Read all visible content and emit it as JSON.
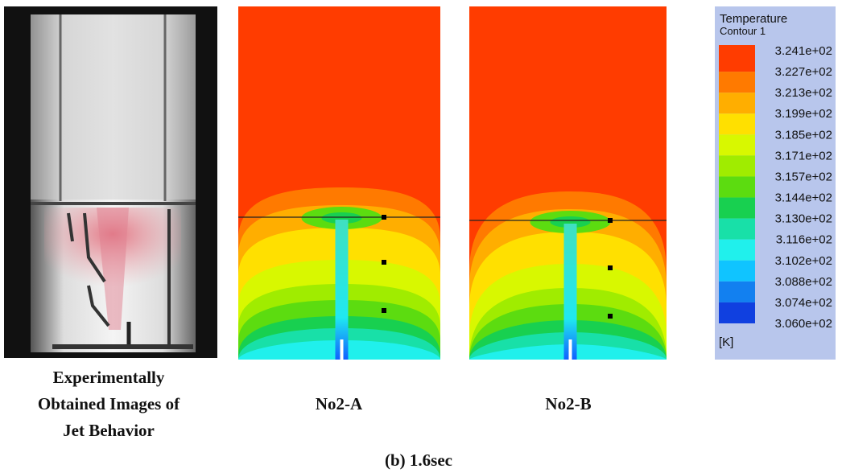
{
  "figure": {
    "panels": [
      {
        "caption_lines": [
          "Experimentally",
          "Obtained Images of",
          "Jet Behavior"
        ]
      },
      {
        "caption": "No2-A"
      },
      {
        "caption": "No2-B"
      }
    ],
    "legend": {
      "title_lines": [
        "Temperature",
        "Contour 1"
      ],
      "labels": [
        "3.241e+02",
        "3.227e+02",
        "3.213e+02",
        "3.199e+02",
        "3.185e+02",
        "3.171e+02",
        "3.157e+02",
        "3.144e+02",
        "3.130e+02",
        "3.116e+02",
        "3.102e+02",
        "3.088e+02",
        "3.074e+02",
        "3.060e+02"
      ],
      "unit": "[K]"
    },
    "caption": "(b) 1.6sec"
  }
}
